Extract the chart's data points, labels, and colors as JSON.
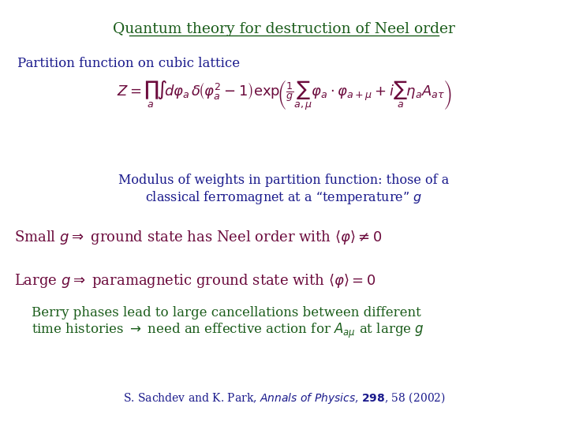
{
  "title": "Quantum theory for destruction of Neel order",
  "title_color": "#1a5c1a",
  "title_fontsize": 13.5,
  "bg_color": "#ffffff",
  "text_color_blue": "#1a1a8c",
  "text_color_dark_red": "#6b0a3c",
  "text_color_green": "#1a5c1a",
  "subtitle": "Partition function on cubic lattice",
  "subtitle_fontsize": 12,
  "eq_fontsize": 13,
  "modulus_line1": "Modulus of weights in partition function: those of a",
  "modulus_line2": "classical ferromagnet at a “temperature” $g$",
  "modulus_fontsize": 11.5,
  "small_g_fontsize": 13,
  "large_g_fontsize": 13,
  "berry_fontsize": 12,
  "citation_fontsize": 10
}
